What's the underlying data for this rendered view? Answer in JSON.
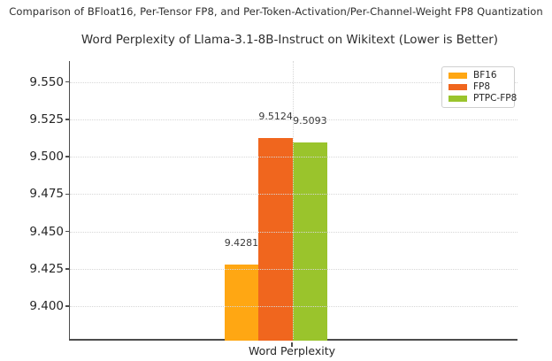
{
  "chart_data": {
    "type": "bar",
    "suptitle": "Comparison of BFloat16, Per-Tensor FP8, and Per-Token-Activation/Per-Channel-Weight FP8 Quantization",
    "title": "Word Perplexity of Llama-3.1-8B-Instruct on Wikitext (Lower is Better)",
    "categories": [
      "Word Perplexity"
    ],
    "series": [
      {
        "name": "BF16",
        "color": "#ffa713",
        "values": [
          9.4281
        ]
      },
      {
        "name": "FP8",
        "color": "#f0661e",
        "values": [
          9.5124
        ]
      },
      {
        "name": "PTPC-FP8",
        "color": "#9ac42c",
        "values": [
          9.5093
        ]
      }
    ],
    "value_labels": [
      "9.4281",
      "9.5124",
      "9.5093"
    ],
    "xlabel": "Word Perplexity",
    "ylabel": "",
    "ylim": [
      9.377,
      9.564
    ],
    "yticks": [
      9.4,
      9.425,
      9.45,
      9.475,
      9.5,
      9.525,
      9.55
    ],
    "ytick_labels": [
      "9.400",
      "9.425",
      "9.450",
      "9.475",
      "9.500",
      "9.525",
      "9.550"
    ],
    "grid": true,
    "grid_style": "dotted",
    "legend_position": "upper right",
    "legend_entries": [
      "BF16",
      "FP8",
      "PTPC-FP8"
    ]
  },
  "colors": {
    "background": "#ffffff",
    "spine": "#4c4c4c",
    "gridline": "#d7d7d7",
    "text": "#2e2e2e",
    "tick_text": "#262626",
    "value_label_text": "#3a3a3a",
    "bf16": "#ffa713",
    "fp8": "#f0661e",
    "ptpc_fp8": "#9ac42c"
  }
}
